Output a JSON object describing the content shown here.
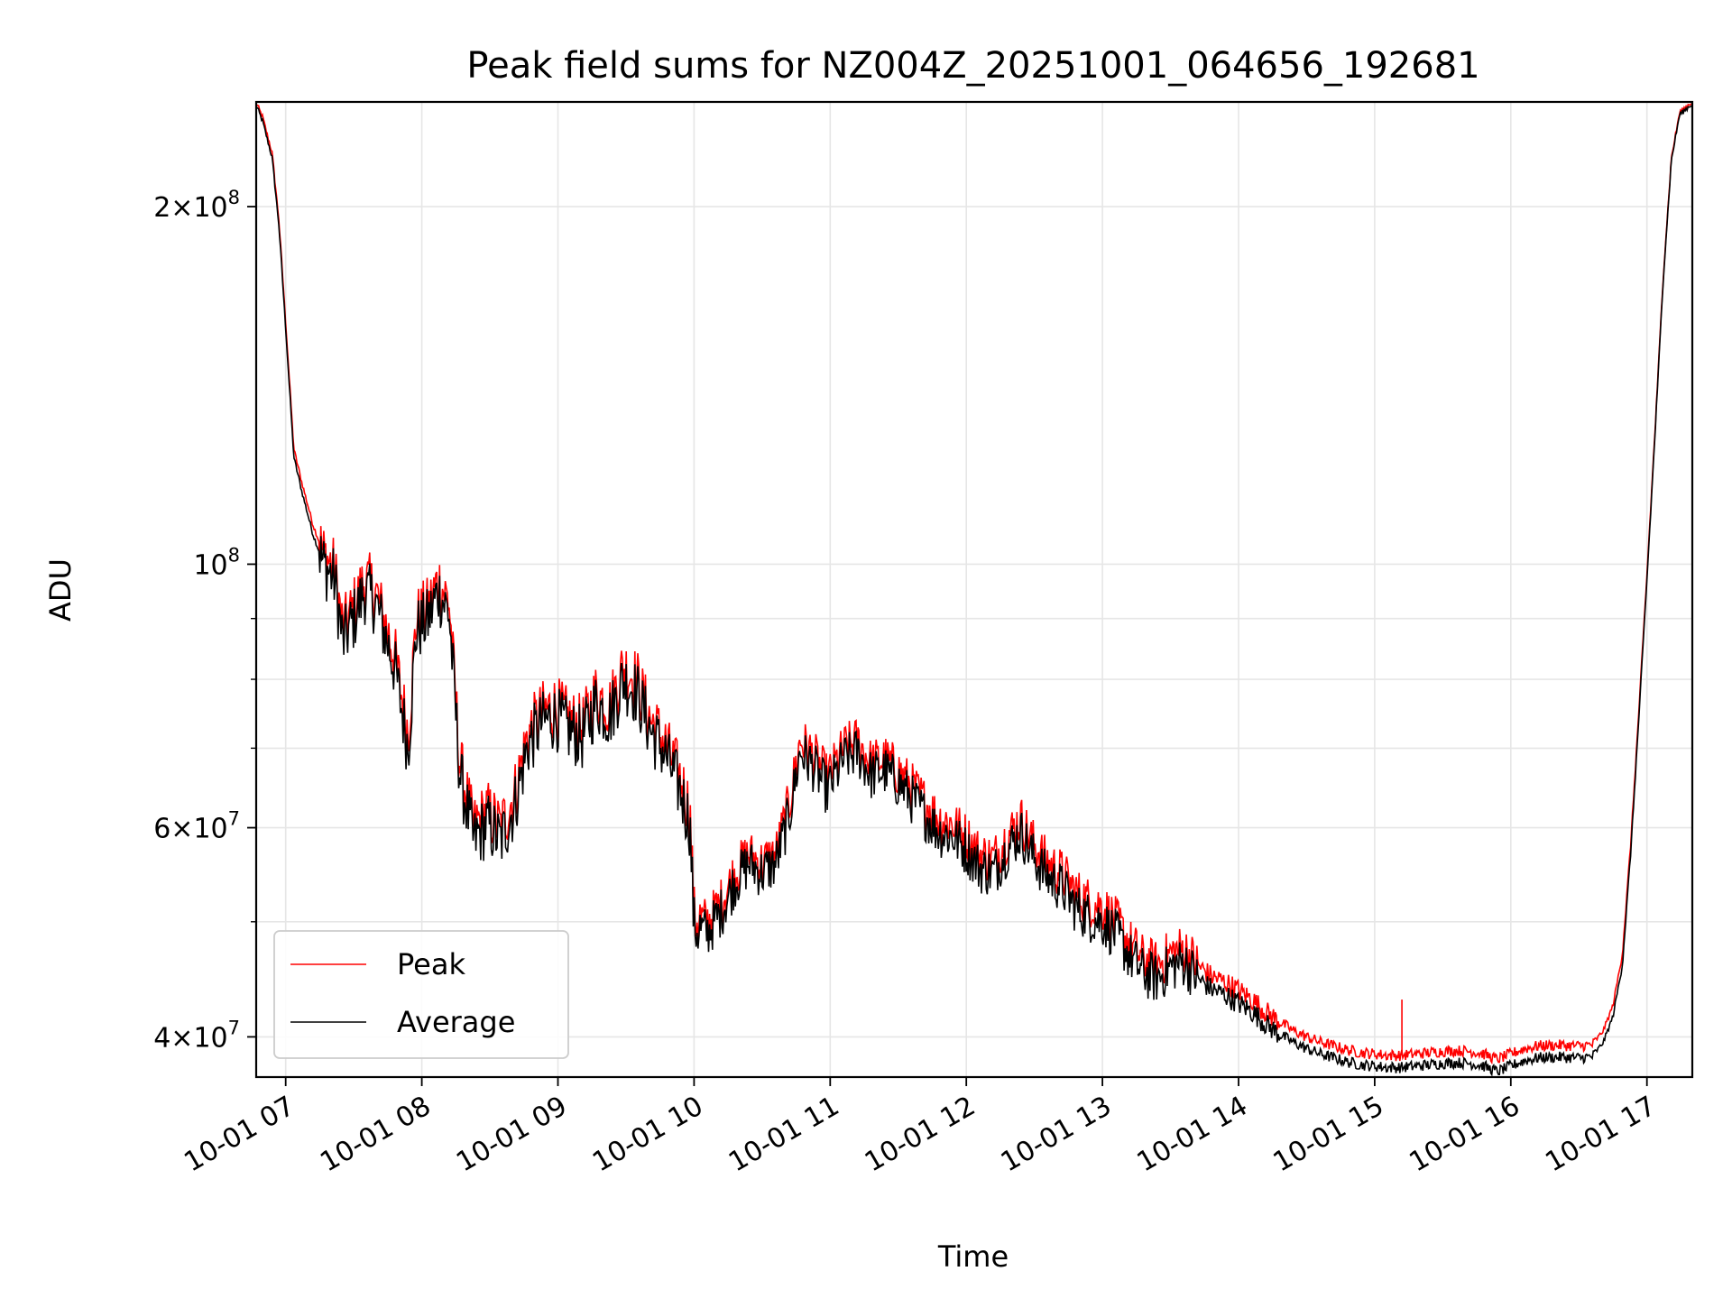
{
  "chart_data": {
    "type": "line",
    "title": "Peak field sums for NZ004Z_20251001_064656_192681",
    "xlabel": "Time",
    "ylabel": "ADU",
    "y_scale": "log",
    "x_range": [
      "10-01 06:47",
      "10-01 17:20"
    ],
    "ylim": [
      37000000,
      245000000
    ],
    "grid": true,
    "legend_position": "lower-left",
    "x_ticks": [
      {
        "t": 7,
        "label": "10-01 07"
      },
      {
        "t": 8,
        "label": "10-01 08"
      },
      {
        "t": 9,
        "label": "10-01 09"
      },
      {
        "t": 10,
        "label": "10-01 10"
      },
      {
        "t": 11,
        "label": "10-01 11"
      },
      {
        "t": 12,
        "label": "10-01 12"
      },
      {
        "t": 13,
        "label": "10-01 13"
      },
      {
        "t": 14,
        "label": "10-01 14"
      },
      {
        "t": 15,
        "label": "10-01 15"
      },
      {
        "t": 16,
        "label": "10-01 16"
      },
      {
        "t": 17,
        "label": "10-01 17"
      }
    ],
    "y_major_ticks": [
      {
        "value": 40000000,
        "base": "4",
        "exp": "7"
      },
      {
        "value": 60000000,
        "base": "6",
        "exp": "7"
      },
      {
        "value": 100000000,
        "base": "",
        "exp": "8"
      },
      {
        "value": 200000000,
        "base": "2",
        "exp": "8"
      }
    ],
    "y_grid_values": [
      40000000,
      50000000,
      60000000,
      70000000,
      80000000,
      90000000,
      100000000,
      200000000
    ],
    "x_unit": "hour of 2025-10-01",
    "series": [
      {
        "name": "Peak",
        "color": "#ff0000",
        "spike": {
          "t": 15.2,
          "value": 43000000
        },
        "points": [
          [
            6.78,
            245000000
          ],
          [
            6.83,
            238000000
          ],
          [
            6.9,
            222000000
          ],
          [
            6.95,
            195000000
          ],
          [
            7.0,
            160000000
          ],
          [
            7.06,
            125000000
          ],
          [
            7.12,
            117000000
          ],
          [
            7.2,
            108000000
          ],
          [
            7.28,
            102000000
          ],
          [
            7.36,
            99000000
          ],
          [
            7.42,
            88000000
          ],
          [
            7.5,
            92000000
          ],
          [
            7.58,
            97000000
          ],
          [
            7.66,
            95000000
          ],
          [
            7.72,
            90000000
          ],
          [
            7.8,
            84000000
          ],
          [
            7.9,
            72000000
          ],
          [
            7.96,
            90000000
          ],
          [
            8.05,
            92000000
          ],
          [
            8.12,
            97000000
          ],
          [
            8.2,
            93000000
          ],
          [
            8.28,
            68000000
          ],
          [
            8.38,
            60000000
          ],
          [
            8.48,
            62000000
          ],
          [
            8.58,
            60000000
          ],
          [
            8.68,
            64000000
          ],
          [
            8.78,
            72000000
          ],
          [
            8.88,
            75000000
          ],
          [
            8.98,
            76000000
          ],
          [
            9.08,
            74000000
          ],
          [
            9.18,
            73000000
          ],
          [
            9.28,
            78000000
          ],
          [
            9.38,
            76000000
          ],
          [
            9.48,
            82000000
          ],
          [
            9.58,
            80000000
          ],
          [
            9.68,
            74000000
          ],
          [
            9.78,
            71000000
          ],
          [
            9.9,
            66000000
          ],
          [
            9.97,
            62000000
          ],
          [
            10.0,
            50500000
          ],
          [
            10.1,
            50000000
          ],
          [
            10.2,
            52000000
          ],
          [
            10.3,
            55000000
          ],
          [
            10.4,
            57000000
          ],
          [
            10.5,
            56000000
          ],
          [
            10.6,
            57000000
          ],
          [
            10.7,
            63000000
          ],
          [
            10.78,
            71000000
          ],
          [
            10.88,
            69000000
          ],
          [
            10.98,
            66000000
          ],
          [
            11.1,
            70000000
          ],
          [
            11.2,
            71000000
          ],
          [
            11.3,
            68000000
          ],
          [
            11.4,
            68500000
          ],
          [
            11.5,
            67000000
          ],
          [
            11.6,
            65000000
          ],
          [
            11.7,
            63000000
          ],
          [
            11.8,
            61000000
          ],
          [
            11.9,
            60500000
          ],
          [
            12.0,
            59000000
          ],
          [
            12.1,
            57000000
          ],
          [
            12.2,
            56500000
          ],
          [
            12.3,
            59000000
          ],
          [
            12.4,
            61000000
          ],
          [
            12.5,
            58000000
          ],
          [
            12.6,
            56000000
          ],
          [
            12.7,
            55000000
          ],
          [
            12.8,
            53000000
          ],
          [
            12.9,
            52000000
          ],
          [
            13.0,
            51500000
          ],
          [
            13.1,
            50000000
          ],
          [
            13.2,
            48000000
          ],
          [
            13.3,
            46500000
          ],
          [
            13.4,
            46000000
          ],
          [
            13.5,
            47000000
          ],
          [
            13.6,
            47500000
          ],
          [
            13.7,
            46000000
          ],
          [
            13.8,
            45000000
          ],
          [
            13.9,
            44500000
          ],
          [
            14.0,
            43800000
          ],
          [
            14.1,
            43000000
          ],
          [
            14.2,
            42000000
          ],
          [
            14.3,
            41200000
          ],
          [
            14.4,
            40500000
          ],
          [
            14.5,
            40000000
          ],
          [
            14.6,
            39600000
          ],
          [
            14.7,
            39300000
          ],
          [
            14.8,
            39000000
          ],
          [
            14.9,
            38800000
          ],
          [
            15.0,
            38700000
          ],
          [
            15.1,
            38600000
          ],
          [
            15.2,
            38600000
          ],
          [
            15.3,
            38700000
          ],
          [
            15.4,
            38800000
          ],
          [
            15.5,
            38900000
          ],
          [
            15.6,
            38950000
          ],
          [
            15.7,
            38900000
          ],
          [
            15.8,
            38700000
          ],
          [
            15.9,
            38300000
          ],
          [
            16.0,
            38700000
          ],
          [
            16.1,
            39100000
          ],
          [
            16.2,
            39300000
          ],
          [
            16.3,
            39350000
          ],
          [
            16.4,
            39350000
          ],
          [
            16.5,
            39300000
          ],
          [
            16.6,
            39400000
          ],
          [
            16.68,
            40500000
          ],
          [
            16.75,
            42500000
          ],
          [
            16.82,
            47000000
          ],
          [
            16.88,
            58000000
          ],
          [
            16.94,
            75000000
          ],
          [
            17.0,
            98000000
          ],
          [
            17.06,
            130000000
          ],
          [
            17.12,
            175000000
          ],
          [
            17.18,
            220000000
          ],
          [
            17.24,
            240000000
          ],
          [
            17.33,
            245000000
          ]
        ]
      },
      {
        "name": "Average",
        "color": "#000000",
        "points": [
          [
            6.78,
            244000000
          ],
          [
            6.83,
            236000000
          ],
          [
            6.9,
            220000000
          ],
          [
            6.95,
            193000000
          ],
          [
            7.0,
            158000000
          ],
          [
            7.06,
            123000000
          ],
          [
            7.12,
            115000000
          ],
          [
            7.2,
            106000000
          ],
          [
            7.28,
            100000000
          ],
          [
            7.36,
            97000000
          ],
          [
            7.42,
            86000000
          ],
          [
            7.5,
            90000000
          ],
          [
            7.58,
            95000000
          ],
          [
            7.66,
            93000000
          ],
          [
            7.72,
            88000000
          ],
          [
            7.8,
            82000000
          ],
          [
            7.9,
            70000000
          ],
          [
            7.96,
            88000000
          ],
          [
            8.05,
            90000000
          ],
          [
            8.12,
            95000000
          ],
          [
            8.2,
            91000000
          ],
          [
            8.28,
            66500000
          ],
          [
            8.38,
            58500000
          ],
          [
            8.48,
            60500000
          ],
          [
            8.58,
            58500000
          ],
          [
            8.68,
            62500000
          ],
          [
            8.78,
            70500000
          ],
          [
            8.88,
            73500000
          ],
          [
            8.98,
            74500000
          ],
          [
            9.08,
            72500000
          ],
          [
            9.18,
            71500000
          ],
          [
            9.28,
            76500000
          ],
          [
            9.38,
            74500000
          ],
          [
            9.48,
            80000000
          ],
          [
            9.58,
            78000000
          ],
          [
            9.68,
            72500000
          ],
          [
            9.78,
            69500000
          ],
          [
            9.9,
            64500000
          ],
          [
            9.97,
            60500000
          ],
          [
            10.0,
            49500000
          ],
          [
            10.1,
            49000000
          ],
          [
            10.2,
            51000000
          ],
          [
            10.3,
            54000000
          ],
          [
            10.4,
            56000000
          ],
          [
            10.5,
            55000000
          ],
          [
            10.6,
            56000000
          ],
          [
            10.7,
            61500000
          ],
          [
            10.78,
            69500000
          ],
          [
            10.88,
            67500000
          ],
          [
            10.98,
            64500000
          ],
          [
            11.1,
            68500000
          ],
          [
            11.2,
            69500000
          ],
          [
            11.3,
            66500000
          ],
          [
            11.4,
            67000000
          ],
          [
            11.5,
            65500000
          ],
          [
            11.6,
            63500000
          ],
          [
            11.7,
            61500000
          ],
          [
            11.8,
            59500000
          ],
          [
            11.9,
            59000000
          ],
          [
            12.0,
            57500000
          ],
          [
            12.1,
            55500000
          ],
          [
            12.2,
            55000000
          ],
          [
            12.3,
            57500000
          ],
          [
            12.4,
            59500000
          ],
          [
            12.5,
            56500000
          ],
          [
            12.6,
            54500000
          ],
          [
            12.7,
            53500000
          ],
          [
            12.8,
            51500000
          ],
          [
            12.9,
            50500000
          ],
          [
            13.0,
            50000000
          ],
          [
            13.1,
            48800000
          ],
          [
            13.2,
            46800000
          ],
          [
            13.3,
            45300000
          ],
          [
            13.4,
            44800000
          ],
          [
            13.5,
            45800000
          ],
          [
            13.6,
            46300000
          ],
          [
            13.7,
            44800000
          ],
          [
            13.8,
            43900000
          ],
          [
            13.9,
            43400000
          ],
          [
            14.0,
            42700000
          ],
          [
            14.1,
            42000000
          ],
          [
            14.2,
            41000000
          ],
          [
            14.3,
            40200000
          ],
          [
            14.4,
            39600000
          ],
          [
            14.5,
            39100000
          ],
          [
            14.6,
            38700000
          ],
          [
            14.7,
            38400000
          ],
          [
            14.8,
            38100000
          ],
          [
            14.9,
            37900000
          ],
          [
            15.0,
            37800000
          ],
          [
            15.1,
            37700000
          ],
          [
            15.2,
            37700000
          ],
          [
            15.3,
            37800000
          ],
          [
            15.4,
            37900000
          ],
          [
            15.5,
            38000000
          ],
          [
            15.6,
            38050000
          ],
          [
            15.7,
            38000000
          ],
          [
            15.8,
            37800000
          ],
          [
            15.9,
            37400000
          ],
          [
            16.0,
            37800000
          ],
          [
            16.1,
            38200000
          ],
          [
            16.2,
            38400000
          ],
          [
            16.3,
            38450000
          ],
          [
            16.4,
            38450000
          ],
          [
            16.5,
            38400000
          ],
          [
            16.6,
            38500000
          ],
          [
            16.68,
            39600000
          ],
          [
            16.75,
            41600000
          ],
          [
            16.82,
            46000000
          ],
          [
            16.88,
            57000000
          ],
          [
            16.94,
            74000000
          ],
          [
            17.0,
            97000000
          ],
          [
            17.06,
            129000000
          ],
          [
            17.12,
            174000000
          ],
          [
            17.18,
            219000000
          ],
          [
            17.24,
            239000000
          ],
          [
            17.33,
            244000000
          ]
        ]
      }
    ]
  },
  "legend": {
    "items": [
      {
        "label": "Peak",
        "color": "#ff0000"
      },
      {
        "label": "Average",
        "color": "#000000"
      }
    ]
  }
}
